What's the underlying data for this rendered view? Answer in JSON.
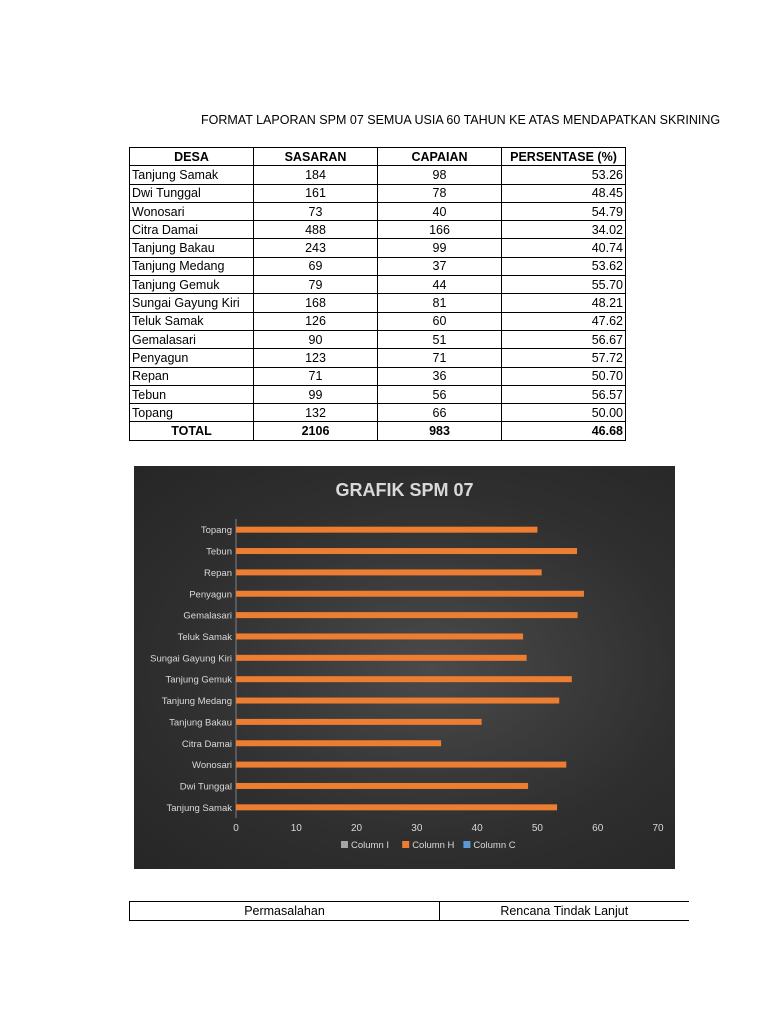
{
  "document": {
    "title": "FORMAT LAPORAN SPM 07 SEMUA USIA 60 TAHUN KE ATAS MENDAPATKAN SKRINING"
  },
  "table": {
    "headers": [
      "DESA",
      "SASARAN",
      "CAPAIAN",
      "PERSENTASE (%)"
    ],
    "rows": [
      {
        "desa": "Tanjung Samak",
        "sasaran": "184",
        "capaian": "98",
        "persentase": "53.26"
      },
      {
        "desa": "Dwi Tunggal",
        "sasaran": "161",
        "capaian": "78",
        "persentase": "48.45"
      },
      {
        "desa": "Wonosari",
        "sasaran": "73",
        "capaian": "40",
        "persentase": "54.79"
      },
      {
        "desa": "Citra Damai",
        "sasaran": "488",
        "capaian": "166",
        "persentase": "34.02"
      },
      {
        "desa": "Tanjung Bakau",
        "sasaran": "243",
        "capaian": "99",
        "persentase": "40.74"
      },
      {
        "desa": "Tanjung Medang",
        "sasaran": "69",
        "capaian": "37",
        "persentase": "53.62"
      },
      {
        "desa": "Tanjung Gemuk",
        "sasaran": "79",
        "capaian": "44",
        "persentase": "55.70"
      },
      {
        "desa": "Sungai Gayung Kiri",
        "sasaran": "168",
        "capaian": "81",
        "persentase": "48.21"
      },
      {
        "desa": "Teluk Samak",
        "sasaran": "126",
        "capaian": "60",
        "persentase": "47.62"
      },
      {
        "desa": "Gemalasari",
        "sasaran": "90",
        "capaian": "51",
        "persentase": "56.67"
      },
      {
        "desa": "Penyagun",
        "sasaran": "123",
        "capaian": "71",
        "persentase": "57.72"
      },
      {
        "desa": "Repan",
        "sasaran": "71",
        "capaian": "36",
        "persentase": "50.70"
      },
      {
        "desa": "Tebun",
        "sasaran": "99",
        "capaian": "56",
        "persentase": "56.57"
      },
      {
        "desa": "Topang",
        "sasaran": "132",
        "capaian": "66",
        "persentase": "50.00"
      }
    ],
    "total": {
      "desa": "TOTAL",
      "sasaran": "2106",
      "capaian": "983",
      "persentase": "46.68"
    }
  },
  "chart_data": {
    "type": "bar",
    "orientation": "horizontal",
    "title": "GRAFIK SPM 07",
    "categories": [
      "Tanjung Samak",
      "Dwi Tunggal",
      "Wonosari",
      "Citra Damai",
      "Tanjung Bakau",
      "Tanjung Medang",
      "Tanjung Gemuk",
      "Sungai Gayung Kiri",
      "Teluk Samak",
      "Gemalasari",
      "Penyagun",
      "Repan",
      "Tebun",
      "Topang"
    ],
    "series": [
      {
        "name": "Column H",
        "color": "#ED7D31",
        "values": [
          53.26,
          48.45,
          54.79,
          34.02,
          40.74,
          53.62,
          55.7,
          48.21,
          47.62,
          56.67,
          57.72,
          50.7,
          56.57,
          50.0
        ]
      }
    ],
    "legend": [
      {
        "name": "Column I",
        "color": "#A5A5A5"
      },
      {
        "name": "Column H",
        "color": "#ED7D31"
      },
      {
        "name": "Column C",
        "color": "#5B9BD5"
      }
    ],
    "legend_position": "bottom",
    "xlim": [
      0,
      70
    ],
    "xticks": [
      0,
      10,
      20,
      30,
      40,
      50,
      60,
      70
    ],
    "grid": false,
    "background": "#333333",
    "label_color": "#D9D9D9"
  },
  "footer_table": {
    "headers": [
      "Permasalahan",
      "Rencana Tindak Lanjut"
    ]
  }
}
